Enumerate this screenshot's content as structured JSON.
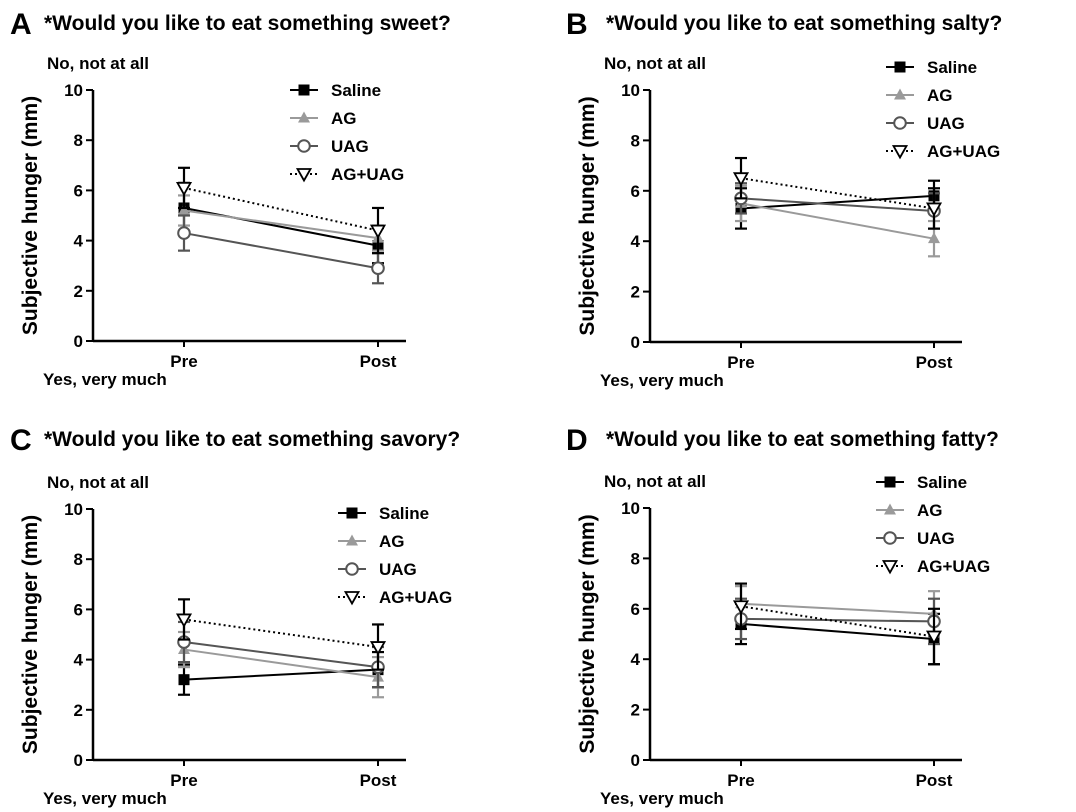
{
  "figure": {
    "panels": [
      {
        "letter": "A",
        "title": "*Would you like to eat something sweet?"
      },
      {
        "letter": "B",
        "title": "*Would you like to eat something salty?"
      },
      {
        "letter": "C",
        "title": "*Would you like to eat something savory?"
      },
      {
        "letter": "D",
        "title": "*Would you like to eat something fatty?"
      }
    ]
  },
  "chart_data": [
    {
      "type": "line",
      "panel": "A",
      "title": "*Would you like to eat something sweet?",
      "ylabel": "Subjective hunger (mm)",
      "ylim": [
        0,
        10
      ],
      "yticks": [
        "0",
        "2",
        "4",
        "6",
        "8",
        "10"
      ],
      "top_annotation": "No, not at all",
      "bottom_annotation": "Yes, very much",
      "categories": [
        "Pre",
        "Post"
      ],
      "legend_position": "top-right",
      "series": [
        {
          "name": "Saline",
          "values": [
            5.3,
            3.8
          ],
          "error": [
            1.0,
            0.7
          ]
        },
        {
          "name": "AG",
          "values": [
            5.2,
            4.1
          ],
          "error": [
            0.6,
            0.5
          ]
        },
        {
          "name": "UAG",
          "values": [
            4.3,
            2.9
          ],
          "error": [
            0.7,
            0.6
          ]
        },
        {
          "name": "AG+UAG",
          "values": [
            6.1,
            4.4
          ],
          "error": [
            0.8,
            0.9
          ]
        }
      ]
    },
    {
      "type": "line",
      "panel": "B",
      "title": "*Would you like to eat something salty?",
      "ylabel": "Subjective hunger (mm)",
      "ylim": [
        0,
        10
      ],
      "yticks": [
        "0",
        "2",
        "4",
        "6",
        "8",
        "10"
      ],
      "top_annotation": "No, not at all",
      "bottom_annotation": "Yes, very much",
      "categories": [
        "Pre",
        "Post"
      ],
      "legend_position": "top-right",
      "series": [
        {
          "name": "Saline",
          "values": [
            5.3,
            5.8
          ],
          "error": [
            0.8,
            0.6
          ]
        },
        {
          "name": "AG",
          "values": [
            5.5,
            4.1
          ],
          "error": [
            0.7,
            0.7
          ]
        },
        {
          "name": "UAG",
          "values": [
            5.7,
            5.2
          ],
          "error": [
            0.6,
            0.7
          ]
        },
        {
          "name": "AG+UAG",
          "values": [
            6.5,
            5.3
          ],
          "error": [
            0.8,
            0.8
          ]
        }
      ]
    },
    {
      "type": "line",
      "panel": "C",
      "title": "*Would you like to eat something savory?",
      "ylabel": "Subjective hunger (mm)",
      "ylim": [
        0,
        10
      ],
      "yticks": [
        "0",
        "2",
        "4",
        "6",
        "8",
        "10"
      ],
      "top_annotation": "No, not at all",
      "bottom_annotation": "Yes, very much",
      "categories": [
        "Pre",
        "Post"
      ],
      "legend_position": "top-right",
      "series": [
        {
          "name": "Saline",
          "values": [
            3.2,
            3.6
          ],
          "error": [
            0.6,
            0.7
          ]
        },
        {
          "name": "AG",
          "values": [
            4.4,
            3.3
          ],
          "error": [
            0.7,
            0.8
          ]
        },
        {
          "name": "UAG",
          "values": [
            4.7,
            3.7
          ],
          "error": [
            0.8,
            0.8
          ]
        },
        {
          "name": "AG+UAG",
          "values": [
            5.6,
            4.5
          ],
          "error": [
            0.8,
            0.9
          ]
        }
      ]
    },
    {
      "type": "line",
      "panel": "D",
      "title": "*Would you like to eat something fatty?",
      "ylabel": "Subjective hunger (mm)",
      "ylim": [
        0,
        10
      ],
      "yticks": [
        "0",
        "2",
        "4",
        "6",
        "8",
        "10"
      ],
      "top_annotation": "No, not at all",
      "bottom_annotation": "Yes, very much",
      "categories": [
        "Pre",
        "Post"
      ],
      "legend_position": "top-right",
      "series": [
        {
          "name": "Saline",
          "values": [
            5.4,
            4.8
          ],
          "error": [
            0.8,
            1.0
          ]
        },
        {
          "name": "AG",
          "values": [
            6.2,
            5.8
          ],
          "error": [
            0.7,
            0.9
          ]
        },
        {
          "name": "UAG",
          "values": [
            5.6,
            5.5
          ],
          "error": [
            0.8,
            0.9
          ]
        },
        {
          "name": "AG+UAG",
          "values": [
            6.1,
            4.9
          ],
          "error": [
            0.9,
            1.1
          ]
        }
      ]
    }
  ],
  "series_styles": {
    "Saline": {
      "color": "#000000",
      "marker": "square",
      "dash": "solid"
    },
    "AG": {
      "color": "#9a9a9a",
      "marker": "triangle-up",
      "dash": "solid"
    },
    "UAG": {
      "color": "#555555",
      "marker": "circle-open",
      "dash": "solid"
    },
    "AG+UAG": {
      "color": "#000000",
      "marker": "triangle-down-open",
      "dash": "dotted"
    }
  }
}
